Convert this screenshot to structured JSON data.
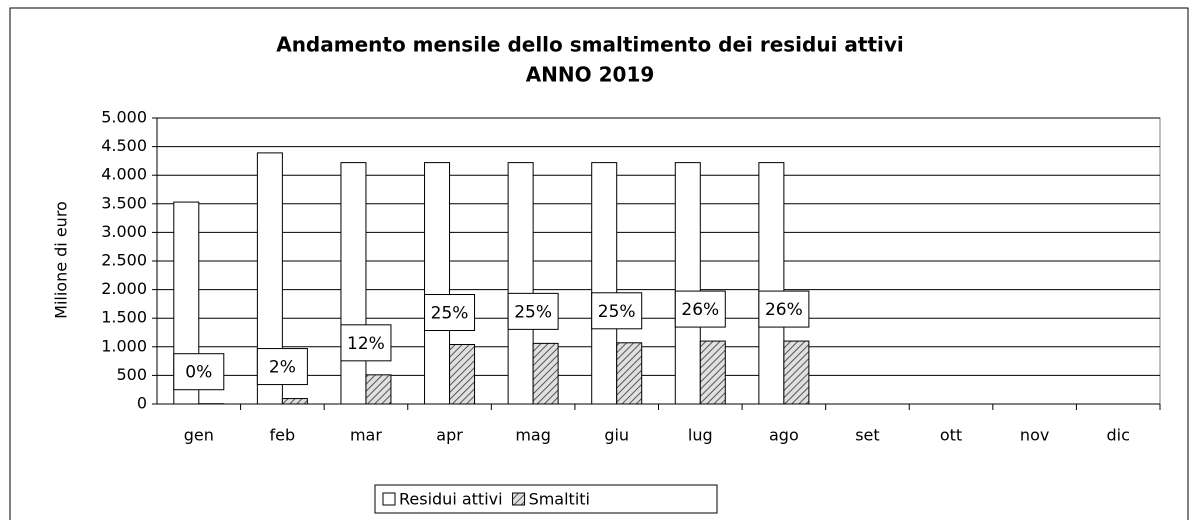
{
  "chart_data": {
    "type": "bar",
    "title": "Andamento mensile dello smaltimento dei residui attivi",
    "subtitle": "ANNO 2019",
    "y_label": "Milione di euro",
    "categories": [
      "gen",
      "feb",
      "mar",
      "apr",
      "mag",
      "giu",
      "lug",
      "ago",
      "set",
      "ott",
      "nov",
      "dic"
    ],
    "series": [
      {
        "name": "Residui attivi",
        "color": "#ffffff",
        "values": [
          3530,
          4390,
          4220,
          4220,
          4220,
          4220,
          4220,
          4220,
          null,
          null,
          null,
          null
        ]
      },
      {
        "name": "Smaltiti",
        "color": "#808080",
        "pattern": "hatch",
        "values": [
          5,
          95,
          510,
          1040,
          1060,
          1070,
          1100,
          1100,
          null,
          null,
          null,
          null
        ]
      }
    ],
    "annotations": [
      "0%",
      "2%",
      "12%",
      "25%",
      "25%",
      "25%",
      "26%",
      "26%"
    ],
    "ylim": [
      0,
      5000
    ],
    "yticks": [
      0,
      500,
      {
        "value": 1000,
        "label": "1.000"
      },
      {
        "value": 1500,
        "label": "1.500"
      },
      {
        "value": 2000,
        "label": "2.000"
      },
      {
        "value": 2500,
        "label": "2.500"
      },
      {
        "value": 3000,
        "label": "3.000"
      },
      {
        "value": 3500,
        "label": "3.500"
      },
      {
        "value": 4000,
        "label": "4.000"
      },
      {
        "value": 4500,
        "label": "4.500"
      },
      {
        "value": 5000,
        "label": "5.000"
      }
    ],
    "grid": true,
    "legend": "bottom"
  }
}
